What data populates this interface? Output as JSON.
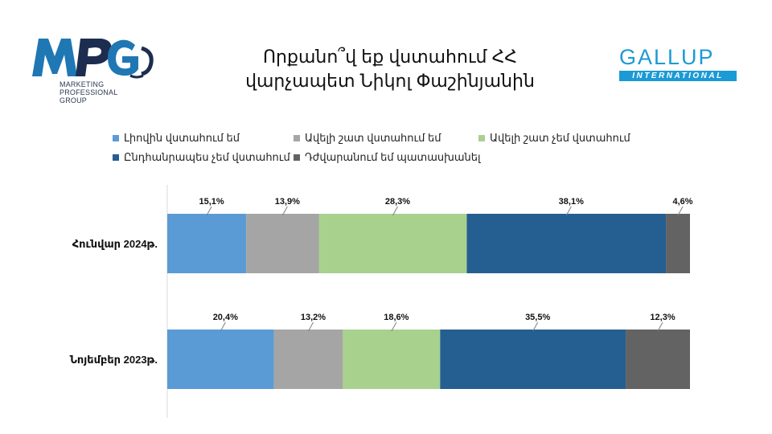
{
  "header": {
    "title_line1": "Որքանո՞վ եք վստահում ՀՀ",
    "title_line2": "վարչապետ Նիկոլ Փաշինյանին"
  },
  "logos": {
    "mpg": {
      "mark": "MPG",
      "sub1": "MARKETING",
      "sub2": "PROFESSIONAL",
      "sub3": "GROUP"
    },
    "gallup": {
      "name": "GALLUP",
      "sub": "INTERNATIONAL"
    }
  },
  "colors": {
    "series1": "#5b9bd5",
    "series2": "#a5a5a5",
    "series3": "#a9d18e",
    "series4": "#255e91",
    "series5": "#636363",
    "gallup_blue": "#1b9ad6",
    "mpg_blue": "#1f77b4",
    "mpg_navy": "#1d2d50"
  },
  "chart_data": {
    "type": "bar",
    "orientation": "horizontal",
    "stacked": true,
    "categories": [
      "Հունվար 2024թ.",
      "Նոյեմբեր 2023թ."
    ],
    "series": [
      {
        "name": "Լիովին վստահում եմ",
        "values": [
          15.1,
          20.4
        ],
        "labels": [
          "15,1%",
          "20,4%"
        ]
      },
      {
        "name": "Ավելի շատ վստահում եմ",
        "values": [
          13.9,
          13.2
        ],
        "labels": [
          "13,9%",
          "13,2%"
        ]
      },
      {
        "name": "Ավելի շատ չեմ վստահում",
        "values": [
          28.3,
          18.6
        ],
        "labels": [
          "28,3%",
          "18,6%"
        ]
      },
      {
        "name": "Ընդհանրապես չեմ վստահում",
        "values": [
          38.1,
          35.5
        ],
        "labels": [
          "38,1%",
          "35,5%"
        ]
      },
      {
        "name": "Դժվարանում եմ պատասխանել",
        "values": [
          4.6,
          12.3
        ],
        "labels": [
          "4,6%",
          "12,3%"
        ]
      }
    ],
    "xlim": [
      0,
      100
    ],
    "legend": "top",
    "grid": false
  }
}
